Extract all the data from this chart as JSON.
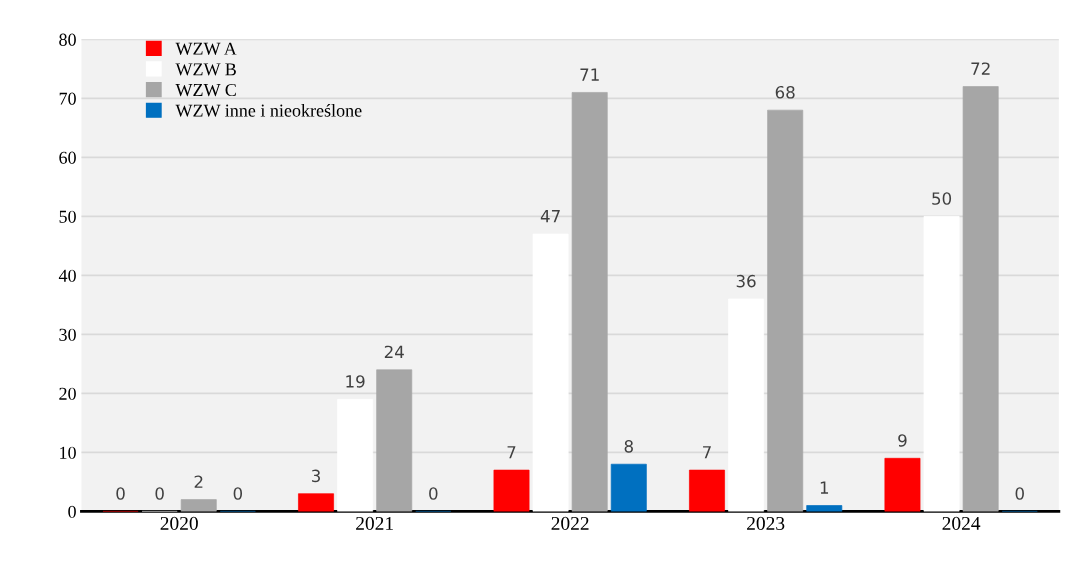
{
  "chart_data": {
    "type": "bar",
    "categories": [
      "2020",
      "2021",
      "2022",
      "2023",
      "2024"
    ],
    "series": [
      {
        "name": "WZW A",
        "color": "#ff0000",
        "values": [
          0,
          3,
          7,
          7,
          9
        ]
      },
      {
        "name": "WZW B",
        "color": "#ffffff",
        "values": [
          0,
          19,
          47,
          36,
          50
        ]
      },
      {
        "name": "WZW C",
        "color": "#a6a6a6",
        "values": [
          2,
          24,
          71,
          68,
          72
        ]
      },
      {
        "name": "WZW inne i nieokreślone",
        "color": "#0070c0",
        "values": [
          0,
          0,
          8,
          1,
          0
        ]
      }
    ],
    "ylim": [
      0,
      80
    ],
    "yticks": [
      0,
      10,
      20,
      30,
      40,
      50,
      60,
      70,
      80
    ],
    "grid": "y",
    "legend": "top left",
    "data_labels": true
  }
}
